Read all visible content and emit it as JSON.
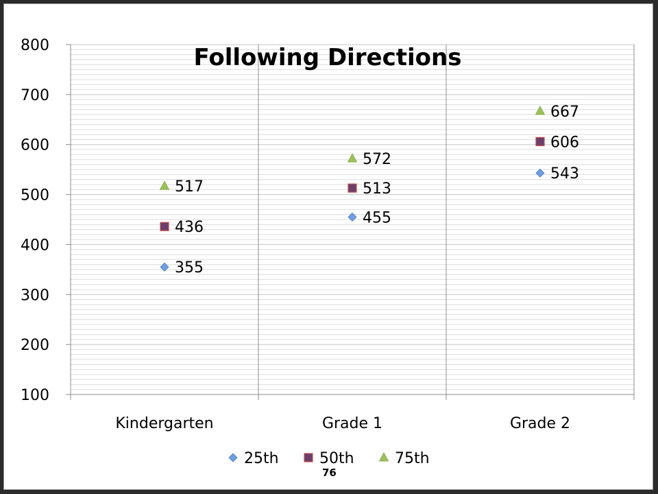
{
  "chart_data": {
    "type": "scatter",
    "title": "Following Directions",
    "xlabel": "",
    "ylabel": "",
    "categories": [
      "Kindergarten",
      "Grade 1",
      "Grade 2"
    ],
    "series": [
      {
        "name": "25th",
        "values": [
          355,
          455,
          543
        ],
        "marker": "diamond",
        "color": "#6f9fe0"
      },
      {
        "name": "50th",
        "values": [
          436,
          513,
          606
        ],
        "marker": "square",
        "color": "#6b3f6b"
      },
      {
        "name": "75th",
        "values": [
          517,
          572,
          667
        ],
        "marker": "triangle",
        "color": "#9bc25a"
      }
    ],
    "ylim": [
      100,
      800
    ],
    "yticks": [
      "100",
      "200",
      "300",
      "400",
      "500",
      "600",
      "700",
      "800"
    ],
    "minor_gridlines": true,
    "legend_position": "bottom"
  },
  "page_number": "76"
}
